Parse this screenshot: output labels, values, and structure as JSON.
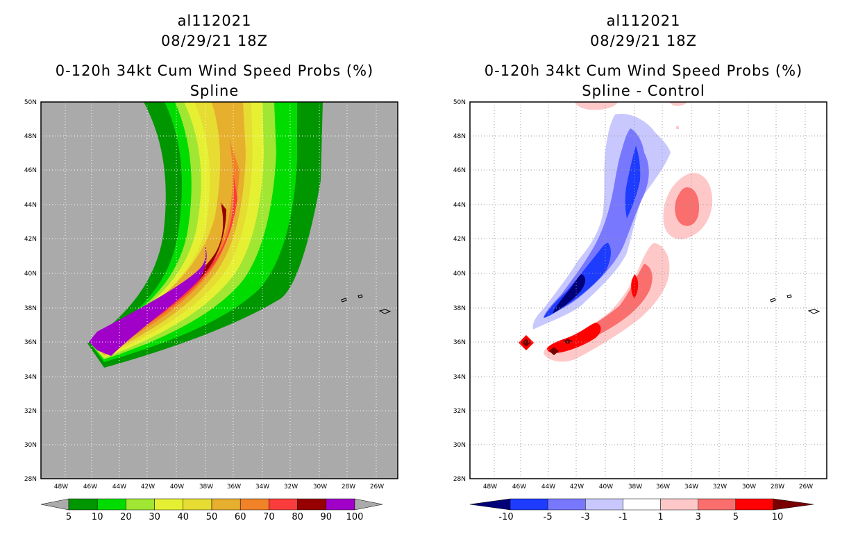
{
  "left_panel": {
    "storm_id": "al112021",
    "datetime": "08/29/21 18Z",
    "product": "0-120h 34kt Cum Wind Speed Probs (%)",
    "subtitle": "Spline",
    "lat_labels": [
      "50N",
      "48N",
      "46N",
      "44N",
      "42N",
      "40N",
      "38N",
      "36N",
      "34N",
      "32N",
      "30N",
      "28N"
    ],
    "lon_labels": [
      "48W",
      "46W",
      "44W",
      "42W",
      "40W",
      "38W",
      "36W",
      "34W",
      "32W",
      "30W",
      "28W",
      "26W"
    ],
    "colorbar": {
      "labels": [
        "5",
        "10",
        "20",
        "30",
        "40",
        "50",
        "60",
        "70",
        "80",
        "90",
        "100"
      ],
      "colors": [
        "#009600",
        "#00dc00",
        "#a0e632",
        "#e6f032",
        "#e6dc32",
        "#e6af2d",
        "#f08228",
        "#fa3c3c",
        "#960000",
        "#a000c8"
      ],
      "under_color": "#aaaaaa",
      "over_color": "#aaaaaa"
    },
    "background_color": "#aaaaaa"
  },
  "right_panel": {
    "storm_id": "al112021",
    "datetime": "08/29/21 18Z",
    "product": "0-120h 34kt Cum Wind Speed Probs (%)",
    "subtitle": "Spline - Control",
    "lat_labels": [
      "50N",
      "48N",
      "46N",
      "44N",
      "42N",
      "40N",
      "38N",
      "36N",
      "34N",
      "32N",
      "30N",
      "28N"
    ],
    "lon_labels": [
      "48W",
      "46W",
      "44W",
      "42W",
      "40W",
      "38W",
      "36W",
      "34W",
      "32W",
      "30W",
      "28W",
      "26W"
    ],
    "colorbar": {
      "labels": [
        "-10",
        "-5",
        "-3",
        "-1",
        "1",
        "3",
        "5",
        "10"
      ],
      "colors": [
        "#1e3cff",
        "#7878ff",
        "#c8c8ff",
        "#ffffff",
        "#ffc8c8",
        "#fa6e6e",
        "#ff0000"
      ],
      "under_color": "#000078",
      "over_color": "#780000"
    }
  }
}
